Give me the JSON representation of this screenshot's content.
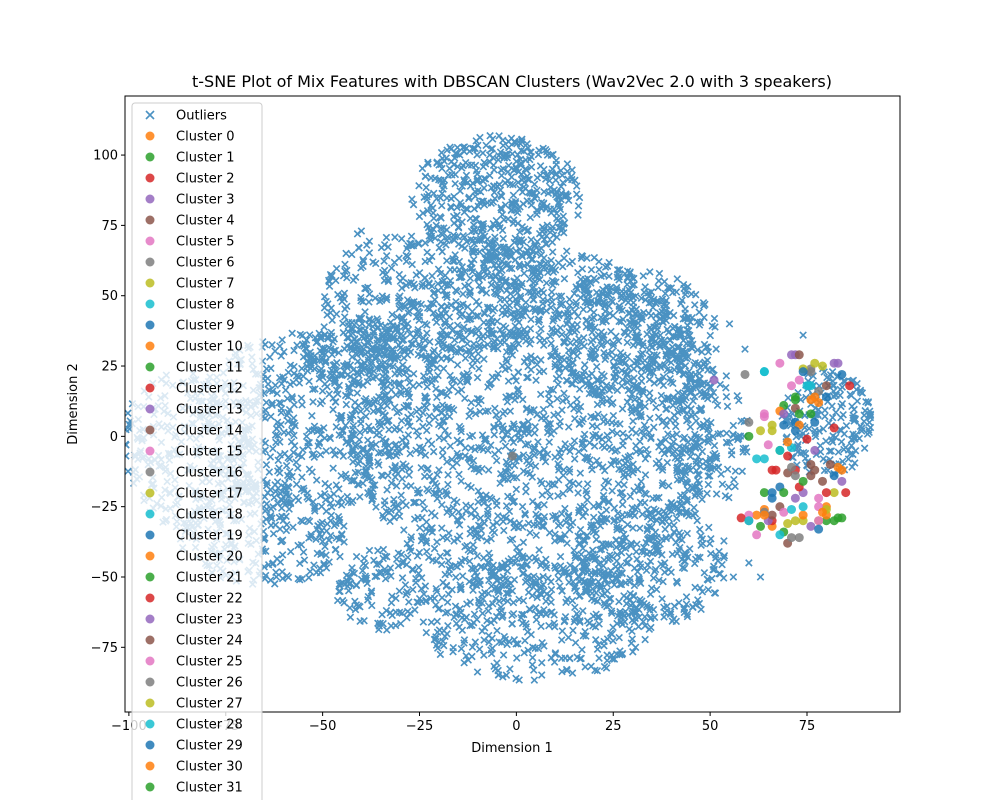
{
  "chart_data": {
    "type": "scatter",
    "title": "t-SNE Plot of Mix Features with DBSCAN Clusters (Wav2Vec 2.0 with 3 speakers)",
    "xlabel": "Dimension 1",
    "ylabel": "Dimension 2",
    "xlim": [
      -101,
      99
    ],
    "ylim": [
      -98,
      121
    ],
    "xticks": [
      -100,
      -75,
      -50,
      -25,
      0,
      25,
      50,
      75
    ],
    "xtick_labels": [
      "−100",
      "−75",
      "−50",
      "−25",
      "0",
      "25",
      "50",
      "75"
    ],
    "yticks": [
      -75,
      -50,
      -25,
      0,
      25,
      50,
      75,
      100
    ],
    "ytick_labels": [
      "−75",
      "−50",
      "−25",
      "0",
      "25",
      "50",
      "75",
      "100"
    ],
    "grid": false,
    "legend_placement": "upper-left",
    "outliers": {
      "name": "Outliers",
      "marker": "x",
      "color": "#1f77b4",
      "blobs": [
        {
          "cx": 5,
          "cy": 5,
          "rx": 48,
          "ry": 62,
          "n": 1800
        },
        {
          "cx": -5,
          "cy": 85,
          "rx": 22,
          "ry": 22,
          "n": 450
        },
        {
          "cx": -20,
          "cy": 50,
          "rx": 30,
          "ry": 25,
          "n": 400
        },
        {
          "cx": 30,
          "cy": 35,
          "rx": 22,
          "ry": 25,
          "n": 350
        },
        {
          "cx": -55,
          "cy": 5,
          "rx": 28,
          "ry": 32,
          "n": 500
        },
        {
          "cx": -85,
          "cy": -5,
          "rx": 18,
          "ry": 28,
          "n": 250
        },
        {
          "cx": -65,
          "cy": -35,
          "rx": 22,
          "ry": 18,
          "n": 250
        },
        {
          "cx": 5,
          "cy": -65,
          "rx": 30,
          "ry": 22,
          "n": 400
        },
        {
          "cx": 35,
          "cy": -45,
          "rx": 20,
          "ry": 22,
          "n": 250
        },
        {
          "cx": 80,
          "cy": 5,
          "rx": 12,
          "ry": 20,
          "n": 200
        },
        {
          "cx": -35,
          "cy": -55,
          "rx": 12,
          "ry": 15,
          "n": 120
        },
        {
          "cx": -40,
          "cy": 30,
          "rx": 15,
          "ry": 12,
          "n": 150
        },
        {
          "cx": 50,
          "cy": 0,
          "rx": 10,
          "ry": 25,
          "n": 120
        }
      ],
      "isolated": [
        [
          -41,
          72
        ],
        [
          -37,
          62
        ],
        [
          -34,
          59
        ],
        [
          -40,
          73
        ],
        [
          56,
          -50
        ],
        [
          60,
          -45
        ],
        [
          63,
          -50
        ],
        [
          55,
          40
        ],
        [
          59,
          31
        ],
        [
          74,
          36
        ]
      ]
    },
    "clusters": [
      {
        "name": "Cluster 0",
        "color": "#ff7f0e",
        "points": [
          [
            84,
            -12
          ],
          [
            66,
            -32
          ],
          [
            76,
            13
          ],
          [
            80,
            -25
          ]
        ]
      },
      {
        "name": "Cluster 1",
        "color": "#2ca02c",
        "points": [
          [
            69,
            11
          ],
          [
            76,
            8
          ],
          [
            64,
            -20
          ],
          [
            80,
            -30
          ]
        ]
      },
      {
        "name": "Cluster 2",
        "color": "#d62728",
        "points": [
          [
            86,
            18
          ],
          [
            70,
            -7
          ],
          [
            66,
            -30
          ],
          [
            82,
            3
          ]
        ]
      },
      {
        "name": "Cluster 3",
        "color": "#9467bd",
        "points": [
          [
            51,
            20
          ],
          [
            72,
            29
          ],
          [
            74,
            -20
          ],
          [
            82,
            26
          ]
        ]
      },
      {
        "name": "Cluster 4",
        "color": "#8c564b",
        "points": [
          [
            80,
            18
          ],
          [
            72,
            10
          ],
          [
            68,
            -25
          ],
          [
            77,
            -12
          ]
        ]
      },
      {
        "name": "Cluster 5",
        "color": "#e377c2",
        "points": [
          [
            68,
            26
          ],
          [
            64,
            8
          ],
          [
            62,
            -35
          ],
          [
            78,
            -22
          ]
        ]
      },
      {
        "name": "Cluster 6",
        "color": "#7f7f7f",
        "points": [
          [
            -1,
            -7
          ],
          [
            59,
            22
          ],
          [
            76,
            24
          ],
          [
            60,
            -30
          ]
        ]
      },
      {
        "name": "Cluster 7",
        "color": "#bcbd22",
        "points": [
          [
            79,
            25
          ],
          [
            66,
            2
          ],
          [
            74,
            -30
          ],
          [
            82,
            -20
          ]
        ]
      },
      {
        "name": "Cluster 8",
        "color": "#17becf",
        "points": [
          [
            64,
            23
          ],
          [
            64,
            -8
          ],
          [
            71,
            -4
          ],
          [
            76,
            18
          ]
        ]
      },
      {
        "name": "Cluster 9",
        "color": "#1f77b4",
        "points": [
          [
            84,
            22
          ],
          [
            72,
            5
          ],
          [
            68,
            -18
          ],
          [
            80,
            14
          ]
        ]
      },
      {
        "name": "Cluster 10",
        "color": "#ff7f0e",
        "points": [
          [
            83,
            -11
          ],
          [
            68,
            9
          ],
          [
            74,
            -28
          ],
          [
            62,
            -28
          ]
        ]
      },
      {
        "name": "Cluster 11",
        "color": "#2ca02c",
        "points": [
          [
            60,
            0
          ],
          [
            73,
            8
          ],
          [
            84,
            -29
          ],
          [
            69,
            -34
          ]
        ]
      },
      {
        "name": "Cluster 12",
        "color": "#d62728",
        "points": [
          [
            66,
            -12
          ],
          [
            72,
            -12
          ],
          [
            75,
            -1
          ],
          [
            85,
            -20
          ]
        ]
      },
      {
        "name": "Cluster 13",
        "color": "#9467bd",
        "points": [
          [
            71,
            29
          ],
          [
            77,
            -5
          ],
          [
            65,
            -30
          ],
          [
            84,
            -16
          ]
        ]
      },
      {
        "name": "Cluster 14",
        "color": "#8c564b",
        "points": [
          [
            73,
            29
          ],
          [
            76,
            -10
          ],
          [
            79,
            -16
          ],
          [
            70,
            -38
          ]
        ]
      },
      {
        "name": "Cluster 15",
        "color": "#e377c2",
        "points": [
          [
            71,
            18
          ],
          [
            64,
            7
          ],
          [
            78,
            -25
          ],
          [
            60,
            -28
          ]
        ]
      },
      {
        "name": "Cluster 16",
        "color": "#7f7f7f",
        "points": [
          [
            76,
            23
          ],
          [
            60,
            5
          ],
          [
            72,
            -14
          ],
          [
            73,
            -36
          ]
        ]
      },
      {
        "name": "Cluster 17",
        "color": "#bcbd22",
        "points": [
          [
            77,
            26
          ],
          [
            63,
            2
          ],
          [
            70,
            -31
          ],
          [
            78,
            -30
          ]
        ]
      },
      {
        "name": "Cluster 18",
        "color": "#17becf",
        "points": [
          [
            75,
            18
          ],
          [
            62,
            -8
          ],
          [
            74,
            -25
          ],
          [
            68,
            -35
          ]
        ]
      },
      {
        "name": "Cluster 19",
        "color": "#1f77b4",
        "points": [
          [
            69,
            4
          ],
          [
            77,
            5
          ],
          [
            66,
            -22
          ],
          [
            82,
            -14
          ]
        ]
      },
      {
        "name": "Cluster 20",
        "color": "#ff7f0e",
        "points": [
          [
            78,
            12
          ],
          [
            73,
            4
          ],
          [
            64,
            -26
          ],
          [
            80,
            -28
          ]
        ]
      },
      {
        "name": "Cluster 21",
        "color": "#2ca02c",
        "points": [
          [
            72,
            13
          ],
          [
            68,
            -5
          ],
          [
            63,
            -32
          ],
          [
            82,
            -30
          ]
        ]
      },
      {
        "name": "Cluster 22",
        "color": "#d62728",
        "points": [
          [
            67,
            -12
          ],
          [
            73,
            -18
          ],
          [
            58,
            -29
          ],
          [
            80,
            -20
          ]
        ]
      },
      {
        "name": "Cluster 23",
        "color": "#9467bd",
        "points": [
          [
            83,
            26
          ],
          [
            69,
            8
          ],
          [
            72,
            -22
          ],
          [
            76,
            -32
          ]
        ]
      },
      {
        "name": "Cluster 24",
        "color": "#8c564b",
        "points": [
          [
            70,
            -13
          ],
          [
            76,
            -14
          ],
          [
            66,
            -28
          ],
          [
            81,
            -10
          ]
        ]
      },
      {
        "name": "Cluster 25",
        "color": "#e377c2",
        "points": [
          [
            73,
            20
          ],
          [
            65,
            -3
          ],
          [
            69,
            -27
          ],
          [
            78,
            -30
          ]
        ]
      },
      {
        "name": "Cluster 26",
        "color": "#7f7f7f",
        "points": [
          [
            78,
            16
          ],
          [
            71,
            -11
          ],
          [
            64,
            -27
          ],
          [
            71,
            -36
          ]
        ]
      },
      {
        "name": "Cluster 27",
        "color": "#bcbd22",
        "points": [
          [
            74,
            24
          ],
          [
            66,
            4
          ],
          [
            72,
            -30
          ],
          [
            80,
            -26
          ]
        ]
      },
      {
        "name": "Cluster 28",
        "color": "#17becf",
        "points": [
          [
            64,
            23
          ],
          [
            68,
            -5
          ],
          [
            71,
            -26
          ],
          [
            60,
            -30
          ]
        ]
      },
      {
        "name": "Cluster 29",
        "color": "#1f77b4",
        "points": [
          [
            74,
            23
          ],
          [
            72,
            2
          ],
          [
            66,
            -20
          ],
          [
            78,
            -33
          ]
        ]
      },
      {
        "name": "Cluster 30",
        "color": "#ff7f0e",
        "points": [
          [
            77,
            14
          ],
          [
            70,
            -2
          ],
          [
            64,
            -28
          ],
          [
            79,
            -27
          ]
        ]
      },
      {
        "name": "Cluster 31",
        "color": "#2ca02c",
        "points": [
          [
            72,
            14
          ],
          [
            69,
            -20
          ],
          [
            74,
            -16
          ],
          [
            83,
            -29
          ]
        ]
      }
    ]
  }
}
